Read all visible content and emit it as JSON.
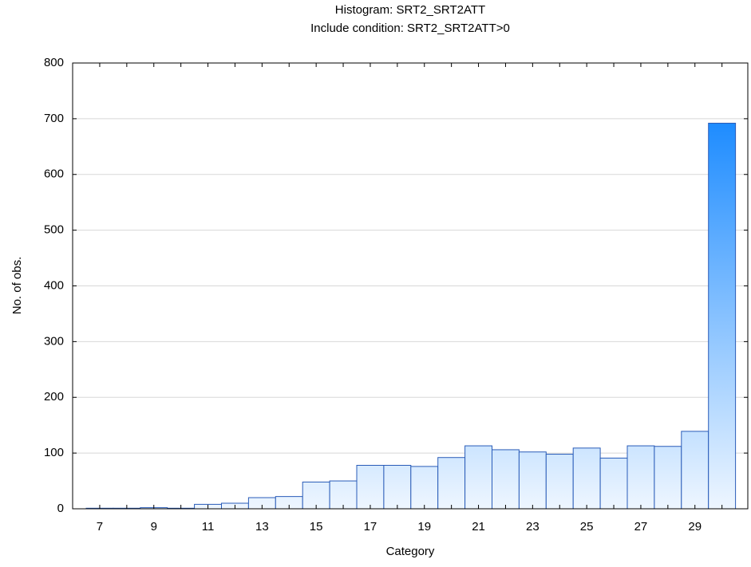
{
  "chart_data": {
    "type": "bar",
    "title": "Histogram: SRT2_SRT2ATT",
    "subtitle": "Include condition: SRT2_SRT2ATT>0",
    "x_label": "Category",
    "y_label": "No. of obs.",
    "categories": [
      7,
      null,
      9,
      null,
      11,
      null,
      13,
      null,
      15,
      null,
      17,
      null,
      19,
      null,
      21,
      null,
      23,
      null,
      25,
      null,
      27,
      null,
      29,
      null
    ],
    "values": [
      1,
      1,
      2,
      1,
      8,
      10,
      20,
      22,
      48,
      50,
      78,
      78,
      76,
      92,
      113,
      106,
      102,
      98,
      109,
      91,
      113,
      112,
      139,
      692
    ],
    "color": "#1e8cff",
    "ylim": [
      0,
      800
    ],
    "yticks": [
      0,
      100,
      200,
      300,
      400,
      500,
      600,
      700,
      800
    ],
    "grid": true
  }
}
